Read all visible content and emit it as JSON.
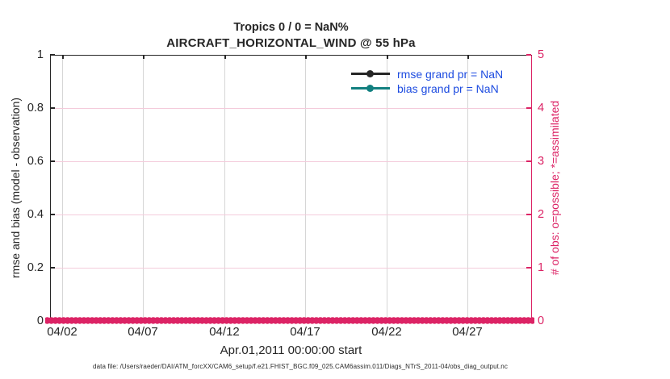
{
  "colors": {
    "axis": "#262626",
    "obs": "#DC2365",
    "bias": "#128080",
    "legend_text": "#1C4BE0",
    "grid_vertical": "#D6D6D6",
    "grid_horizontal": "#F4CBDB"
  },
  "title": {
    "line1": "Tropics 0 / 0 = NaN%",
    "line2": "AIRCRAFT_HORIZONTAL_WIND @ 55 hPa"
  },
  "legend": {
    "items": [
      {
        "label": "rmse grand pr = NaN",
        "color": "#262626",
        "marker": "filled-circle"
      },
      {
        "label": "bias grand pr = NaN",
        "color": "#128080",
        "marker": "filled-circle"
      }
    ]
  },
  "axes": {
    "left": {
      "label": "rmse and bias (model - observation)",
      "tick_labels": [
        "0",
        "0.2",
        "0.4",
        "0.6",
        "0.8",
        "1"
      ]
    },
    "right": {
      "label": "# of obs: o=possible; *=assimilated",
      "tick_labels": [
        "0",
        "1",
        "2",
        "3",
        "4",
        "5"
      ]
    },
    "x": {
      "label": "Apr.01,2011 00:00:00 start",
      "tick_labels": [
        "04/02",
        "04/07",
        "04/12",
        "04/17",
        "04/22",
        "04/27"
      ]
    }
  },
  "footer": {
    "data_file": "data file: /Users/raeder/DAI/ATM_forcXX/CAM6_setup/f.e21.FHIST_BGC.f09_025.CAM6assim.011/Diags_NTrS_2011-04/obs_diag_output.nc"
  },
  "chart_data": {
    "type": "line",
    "title": "Tropics 0 / 0 = NaN%",
    "subtitle": "AIRCRAFT_HORIZONTAL_WIND @ 55 hPa",
    "xlabel": "Apr.01,2011 00:00:00 start",
    "x_tick_labels": [
      "04/02",
      "04/07",
      "04/12",
      "04/17",
      "04/22",
      "04/27"
    ],
    "left_axis": {
      "ylabel": "rmse and bias (model - observation)",
      "ylim": [
        0,
        1
      ],
      "tick_labels": [
        "0",
        "0.2",
        "0.4",
        "0.6",
        "0.8",
        "1"
      ]
    },
    "right_axis": {
      "ylabel": "# of obs: o=possible; *=assimilated",
      "ylim": [
        0,
        5
      ],
      "tick_labels": [
        "0",
        "1",
        "2",
        "3",
        "4",
        "5"
      ]
    },
    "grid": true,
    "legend_position": "top-right-inside",
    "series": [
      {
        "name": "rmse grand pr = NaN",
        "color": "#262626",
        "marker": "point",
        "values": "NaN (no points plotted)"
      },
      {
        "name": "bias grand pr = NaN",
        "color": "#128080",
        "marker": "point",
        "values": "NaN (no points plotted)"
      },
      {
        "name": "# of obs possible / assimilated",
        "axis": "right",
        "color": "#DC2365",
        "marker": "asterisk",
        "constant_value": 0,
        "marker_count": 120
      }
    ]
  }
}
